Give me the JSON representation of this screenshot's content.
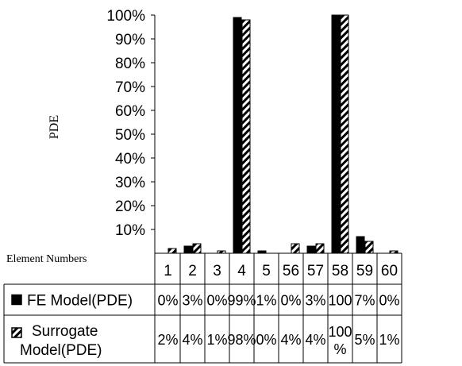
{
  "chart_data": {
    "type": "bar",
    "ylabel": "PDE",
    "xlabel": "Element Numbers",
    "ylim": [
      0,
      100
    ],
    "yticks": [
      "100%",
      "90%",
      "80%",
      "70%",
      "60%",
      "50%",
      "40%",
      "30%",
      "20%",
      "10%"
    ],
    "categories": [
      "1",
      "2",
      "3",
      "4",
      "5",
      "56",
      "57",
      "58",
      "59",
      "60"
    ],
    "series": [
      {
        "name": "FE Model(PDE)",
        "values": [
          0,
          3,
          0,
          99,
          1,
          0,
          3,
          100,
          7,
          0
        ],
        "labels": [
          "0%",
          "3%",
          "0%",
          "99%",
          "1%",
          "0%",
          "3%",
          "100",
          "7%",
          "0%"
        ],
        "color": "#000000",
        "fill": "solid"
      },
      {
        "name": "Surrogate Model(PDE)",
        "name_lines": [
          "Surrogate",
          "Model(PDE)"
        ],
        "values": [
          2,
          4,
          1,
          98,
          0,
          4,
          4,
          100,
          5,
          1
        ],
        "labels": [
          "2%",
          "4%",
          "1%",
          "98%",
          "0%",
          "4%",
          "4%",
          "100 %",
          "5%",
          "1%"
        ],
        "color": "#000000",
        "fill": "hatched"
      }
    ],
    "grid": false,
    "legend": "data-table"
  }
}
